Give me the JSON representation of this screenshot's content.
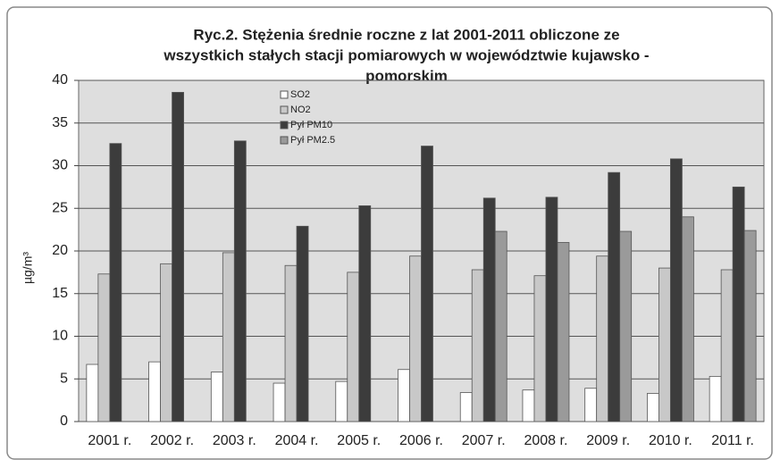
{
  "chart_data": {
    "type": "bar",
    "title": [
      "Ryc.2. Stężenia średnie roczne z lat 2001-2011 obliczone ze",
      "wszystkich stałych stacji pomiarowych w województwie kujawsko -",
      "pomorskim"
    ],
    "ylabel": "µg/m³",
    "categories": [
      "2001 r.",
      "2002 r.",
      "2003 r.",
      "2004 r.",
      "2005 r.",
      "2006 r.",
      "2007 r.",
      "2008 r.",
      "2009 r.",
      "2010 r.",
      "2011 r."
    ],
    "series": [
      {
        "name": "SO2",
        "color": "#ffffff",
        "values": [
          6.7,
          7.0,
          5.8,
          4.5,
          4.7,
          6.1,
          3.4,
          3.7,
          3.9,
          3.3,
          5.3
        ]
      },
      {
        "name": "NO2",
        "color": "#c8c8c8",
        "values": [
          17.3,
          18.5,
          19.8,
          18.3,
          17.5,
          19.4,
          17.8,
          17.1,
          19.4,
          18.0,
          17.8
        ]
      },
      {
        "name": "Pył PM10",
        "color": "#3c3c3c",
        "values": [
          32.6,
          38.6,
          32.9,
          22.9,
          25.3,
          32.3,
          26.2,
          26.3,
          29.2,
          30.8,
          27.5
        ]
      },
      {
        "name": "Pył PM2.5",
        "color": "#9a9a9a",
        "values": [
          null,
          null,
          null,
          null,
          null,
          null,
          22.3,
          21.0,
          22.3,
          24.0,
          22.4
        ]
      }
    ],
    "ylim": [
      0,
      40
    ],
    "yticks": [
      0,
      5,
      10,
      15,
      20,
      25,
      30,
      35,
      40
    ],
    "grid": true
  }
}
